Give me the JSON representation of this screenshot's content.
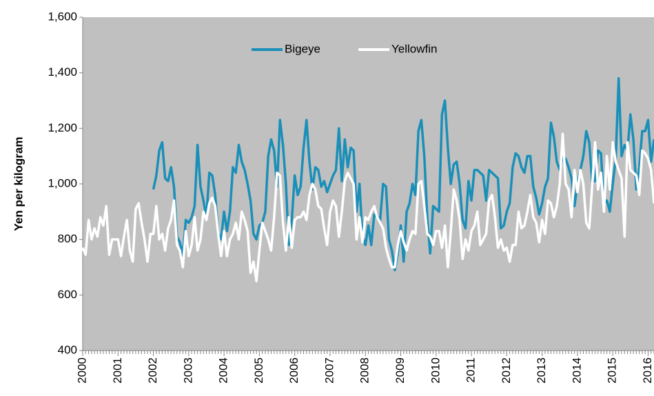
{
  "chart_data": {
    "type": "line",
    "y_label": "Yen per kilogram",
    "categories": [
      "2000",
      null,
      null,
      null,
      null,
      null,
      null,
      null,
      null,
      null,
      null,
      null,
      "2001",
      null,
      null,
      null,
      null,
      null,
      null,
      null,
      null,
      null,
      null,
      null,
      "2002",
      null,
      null,
      null,
      null,
      null,
      null,
      null,
      null,
      null,
      null,
      null,
      "2003",
      null,
      null,
      null,
      null,
      null,
      null,
      null,
      null,
      null,
      null,
      null,
      "2004",
      null,
      null,
      null,
      null,
      null,
      null,
      null,
      null,
      null,
      null,
      null,
      "2005",
      null,
      null,
      null,
      null,
      null,
      null,
      null,
      null,
      null,
      null,
      null,
      "2006",
      null,
      null,
      null,
      null,
      null,
      null,
      null,
      null,
      null,
      null,
      null,
      "2007",
      null,
      null,
      null,
      null,
      null,
      null,
      null,
      null,
      null,
      null,
      null,
      "2008",
      null,
      null,
      null,
      null,
      null,
      null,
      null,
      null,
      null,
      null,
      null,
      "2009",
      null,
      null,
      null,
      null,
      null,
      null,
      null,
      null,
      null,
      null,
      null,
      "2010",
      null,
      null,
      null,
      null,
      null,
      null,
      null,
      null,
      null,
      null,
      null,
      "2011",
      null,
      null,
      null,
      null,
      null,
      null,
      null,
      null,
      null,
      null,
      null,
      "2012",
      null,
      null,
      null,
      null,
      null,
      null,
      null,
      null,
      null,
      null,
      null,
      "2013",
      null,
      null,
      null,
      null,
      null,
      null,
      null,
      null,
      null,
      null,
      null,
      "2014",
      null,
      null,
      null,
      null,
      null,
      null,
      null,
      null,
      null,
      null,
      null,
      "2015",
      null,
      null,
      null,
      null,
      null,
      null,
      null,
      null,
      null,
      null,
      null,
      "2016",
      null,
      null
    ],
    "series": [
      {
        "name": "Bigeye",
        "color": "#1a8fb8",
        "values": [
          null,
          null,
          null,
          null,
          null,
          null,
          null,
          null,
          null,
          null,
          null,
          null,
          null,
          null,
          null,
          null,
          null,
          null,
          null,
          null,
          null,
          null,
          null,
          null,
          980,
          1030,
          1120,
          1150,
          1020,
          1010,
          1060,
          990,
          810,
          790,
          740,
          870,
          860,
          880,
          920,
          1140,
          990,
          940,
          880,
          1040,
          1030,
          960,
          820,
          800,
          900,
          830,
          900,
          1060,
          1040,
          1140,
          1080,
          1050,
          1000,
          940,
          820,
          800,
          850,
          860,
          900,
          1100,
          1160,
          1120,
          990,
          1230,
          1140,
          1000,
          780,
          870,
          1030,
          960,
          990,
          1130,
          1230,
          1080,
          980,
          1060,
          1050,
          990,
          1010,
          970,
          1000,
          1030,
          1050,
          1200,
          1010,
          1160,
          1060,
          1130,
          1120,
          900,
          1000,
          810,
          780,
          850,
          780,
          890,
          880,
          870,
          1000,
          990,
          800,
          760,
          690,
          750,
          850,
          720,
          900,
          930,
          1000,
          960,
          1190,
          1230,
          1100,
          880,
          750,
          920,
          910,
          900,
          1250,
          1300,
          1130,
          1000,
          1070,
          1080,
          1000,
          870,
          840,
          1010,
          940,
          1050,
          1050,
          1040,
          1030,
          940,
          1050,
          1040,
          1030,
          1020,
          840,
          850,
          900,
          930,
          1060,
          1110,
          1100,
          1060,
          1040,
          1100,
          1100,
          990,
          950,
          890,
          930,
          990,
          1020,
          1220,
          1170,
          1080,
          1050,
          1100,
          1090,
          1060,
          1020,
          920,
          1000,
          1050,
          1100,
          1190,
          1150,
          1010,
          1010,
          1120,
          1110,
          930,
          940,
          900,
          1000,
          1090,
          1380,
          1100,
          1140,
          1120,
          1250,
          1160,
          980,
          1060,
          1190,
          1190,
          1230,
          1080,
          1160
        ]
      },
      {
        "name": "Yellowfin",
        "color": "#ffffff",
        "values": [
          770,
          745,
          870,
          800,
          840,
          810,
          880,
          850,
          920,
          745,
          800,
          800,
          800,
          740,
          810,
          870,
          760,
          720,
          910,
          930,
          860,
          800,
          720,
          820,
          820,
          920,
          800,
          820,
          760,
          840,
          870,
          940,
          780,
          760,
          700,
          830,
          740,
          780,
          880,
          760,
          800,
          900,
          870,
          930,
          950,
          920,
          820,
          740,
          830,
          740,
          800,
          820,
          860,
          800,
          900,
          870,
          830,
          680,
          720,
          650,
          760,
          860,
          830,
          800,
          760,
          880,
          1040,
          1030,
          860,
          760,
          880,
          770,
          870,
          880,
          880,
          900,
          870,
          960,
          1000,
          980,
          920,
          910,
          840,
          780,
          900,
          940,
          920,
          810,
          900,
          1010,
          1040,
          1020,
          1000,
          800,
          880,
          790,
          880,
          870,
          900,
          920,
          880,
          860,
          840,
          770,
          730,
          700,
          700,
          780,
          830,
          790,
          760,
          800,
          830,
          820,
          1000,
          1010,
          920,
          820,
          810,
          780,
          830,
          830,
          770,
          850,
          700,
          830,
          980,
          940,
          870,
          730,
          800,
          760,
          830,
          850,
          900,
          780,
          800,
          820,
          940,
          960,
          880,
          770,
          800,
          760,
          770,
          720,
          780,
          780,
          900,
          840,
          850,
          900,
          960,
          880,
          860,
          790,
          870,
          820,
          940,
          930,
          880,
          920,
          1000,
          1180,
          1000,
          980,
          880,
          1050,
          970,
          1050,
          1000,
          860,
          840,
          990,
          1150,
          980,
          1040,
          900,
          1100,
          980,
          1150,
          1080,
          1050,
          1020,
          810,
          1150,
          1050,
          1040,
          1030,
          960,
          1120,
          1110,
          1090,
          1050,
          930
        ]
      }
    ],
    "ylim": [
      400,
      1600
    ],
    "yticks": [
      {
        "value": 400,
        "label": "400"
      },
      {
        "value": 600,
        "label": "600"
      },
      {
        "value": 800,
        "label": "800"
      },
      {
        "value": 1000,
        "label": "1,000"
      },
      {
        "value": 1200,
        "label": "1,200"
      },
      {
        "value": 1400,
        "label": "1,400"
      },
      {
        "value": 1600,
        "label": "1,600"
      }
    ],
    "grid": false,
    "legend": "top"
  }
}
